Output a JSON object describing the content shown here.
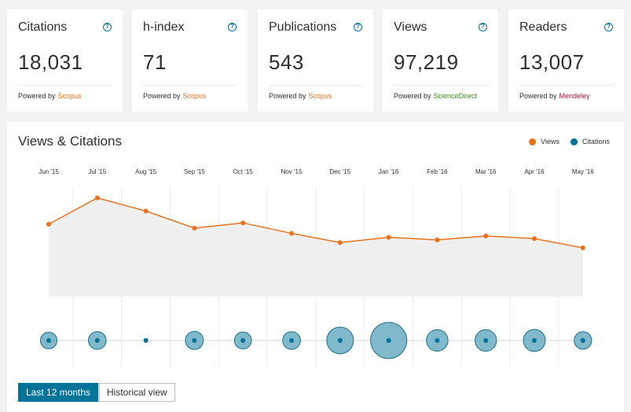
{
  "metrics": [
    {
      "label": "Citations",
      "value": "18,031",
      "powered_by": "Powered by",
      "source": "Scopus",
      "source_color": "#e9711c"
    },
    {
      "label": "h-index",
      "value": "71",
      "powered_by": "Powered by",
      "source": "Scopus",
      "source_color": "#e9711c"
    },
    {
      "label": "Publications",
      "value": "543",
      "powered_by": "Powered by",
      "source": "Scopus",
      "source_color": "#e9711c"
    },
    {
      "label": "Views",
      "value": "97,219",
      "powered_by": "Powered by",
      "source": "ScienceDirect",
      "source_color": "#3f8a1e"
    },
    {
      "label": "Readers",
      "value": "13,007",
      "powered_by": "Powered by",
      "source": "Mendeley",
      "source_color": "#a3162c"
    }
  ],
  "help_glyph": "?",
  "chart_data": {
    "type": "line",
    "title": "Views & Citations",
    "categories": [
      "Jun '15",
      "Jul '15",
      "Aug '15",
      "Sep '15",
      "Oct '15",
      "Nov '15",
      "Dec '15",
      "Jan '16",
      "Feb '16",
      "Mar '16",
      "Apr '16",
      "May '16"
    ],
    "series": [
      {
        "name": "Views",
        "color": "#e9711c",
        "kind": "line",
        "values": [
          0.55,
          0.75,
          0.65,
          0.52,
          0.56,
          0.48,
          0.41,
          0.45,
          0.43,
          0.46,
          0.44,
          0.37
        ]
      },
      {
        "name": "Citations",
        "color": "#007398",
        "kind": "bubble",
        "values": [
          0.17,
          0.22,
          0.0,
          0.23,
          0.19,
          0.22,
          0.6,
          1.0,
          0.38,
          0.38,
          0.4,
          0.21
        ]
      }
    ],
    "grid": true,
    "legend": "top-right"
  },
  "buttons": {
    "last12": "Last 12 months",
    "historical": "Historical view"
  }
}
